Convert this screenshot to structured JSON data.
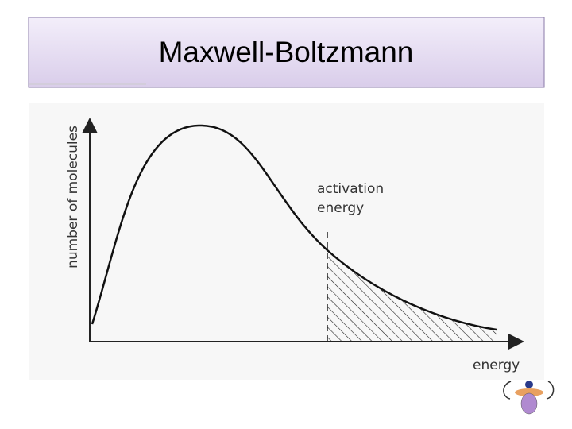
{
  "header": {
    "title": "Maxwell-Boltzmann"
  },
  "diagram": {
    "y_axis_label": "number of molecules",
    "annotation": [
      "activation",
      "energy"
    ],
    "x_axis_label": "energy"
  }
}
